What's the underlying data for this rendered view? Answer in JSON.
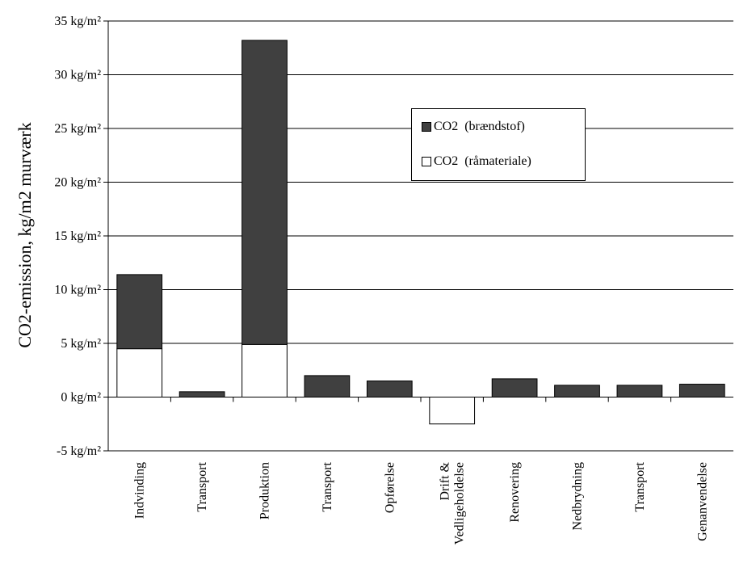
{
  "chart_data": {
    "type": "bar",
    "stacked": true,
    "ylabel": "CO2-emission, kg/m2 murværk",
    "ylim": [
      -5,
      35
    ],
    "yticks": [
      -5,
      0,
      5,
      10,
      15,
      20,
      25,
      30,
      35
    ],
    "ytick_labels": [
      "-5 kg/m²",
      "0 kg/m²",
      "5 kg/m²",
      "10 kg/m²",
      "15 kg/m²",
      "20 kg/m²",
      "25 kg/m²",
      "30 kg/m²",
      "35 kg/m²"
    ],
    "grid": true,
    "legend_position": "upper-right",
    "categories": [
      "Indvinding",
      "Transport",
      "Produktion",
      "Transport",
      "Opførelse",
      "Drift &\nVedligeholdelse",
      "Renovering",
      "Nedbrydning",
      "Transport",
      "Genanvendelse"
    ],
    "series": [
      {
        "name": "CO2  (råmateriale)",
        "color": "#ffffff",
        "values": [
          4.5,
          0,
          4.9,
          0,
          0,
          -2.5,
          0,
          0,
          0,
          0
        ]
      },
      {
        "name": "CO2  (brændstof)",
        "color": "#404040",
        "values": [
          6.9,
          0.5,
          28.3,
          2.0,
          1.5,
          0,
          1.7,
          1.1,
          1.1,
          1.2
        ]
      }
    ]
  }
}
